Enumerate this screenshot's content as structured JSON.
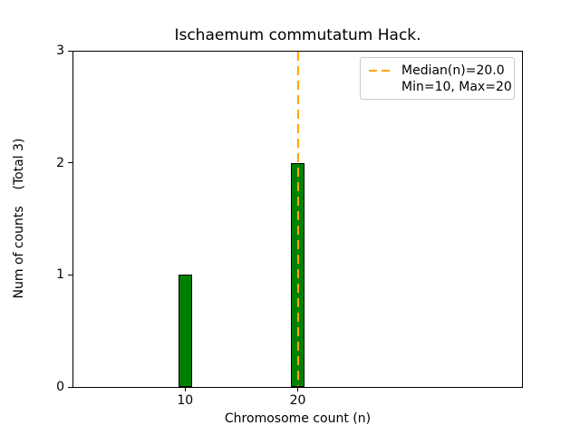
{
  "figure": {
    "background": "#ffffff"
  },
  "chart_data": {
    "type": "bar",
    "title": "Ischaemum commutatum Hack.",
    "xlabel": "Chromosome count (n)",
    "ylabel": "Num of counts    (Total 3)",
    "x": [
      10,
      20
    ],
    "values": [
      1,
      2
    ],
    "bar_width_units": 1.2,
    "bar_color": "#008000",
    "bar_edge_color": "#000000",
    "xlim": [
      0,
      40
    ],
    "ylim": [
      0,
      3
    ],
    "xticks": [
      10,
      20
    ],
    "yticks": [
      0,
      1,
      2,
      3
    ],
    "grid": false,
    "legend_position": "top-right",
    "median_line": {
      "x": 20,
      "color": "#FFA500",
      "style": "dashed"
    },
    "legend": [
      {
        "label": "Median(n)=20.0",
        "symbol": "dashed-line",
        "color": "#FFA500"
      },
      {
        "label": "Min=10, Max=20",
        "symbol": "none"
      }
    ]
  }
}
